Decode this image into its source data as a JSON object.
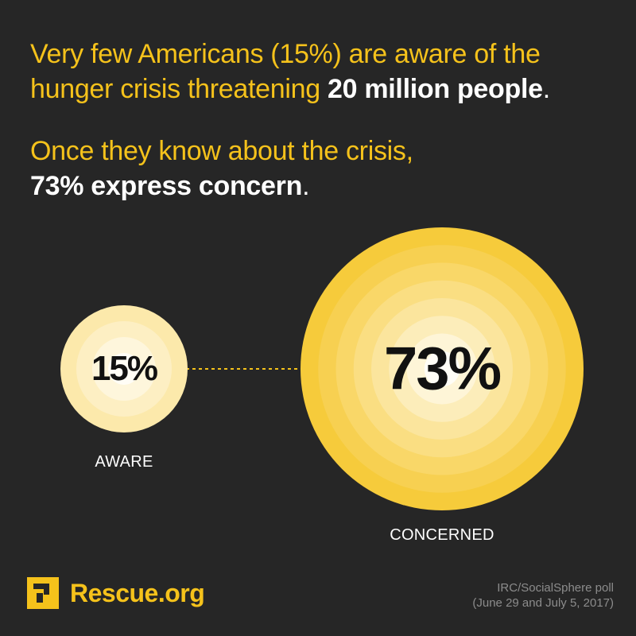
{
  "headline": {
    "line1_pre": "Very few Americans (15%) are aware of the hunger crisis threatening ",
    "line1_em": "20 million people",
    "line1_end": ".",
    "line2_pre": "Once they know about the crisis,",
    "line2_em": "73% express concern",
    "line2_end": "."
  },
  "chart_data": {
    "type": "bubble",
    "title": "",
    "items": [
      {
        "label": "AWARE",
        "value": 15,
        "value_label": "15%"
      },
      {
        "label": "CONCERNED",
        "value": 73,
        "value_label": "73%"
      }
    ],
    "connector": "dashed",
    "colors": {
      "outer": "#f5c21b",
      "center": "#ffffff"
    }
  },
  "footer": {
    "brand": "Rescue.org",
    "source_line1": "IRC/SocialSphere poll",
    "source_line2": "(June 29 and July 5, 2017)"
  },
  "colors": {
    "background": "#262626",
    "accent": "#f5c21b",
    "text": "#ffffff"
  },
  "icons": {
    "logo": "irc-logo-icon"
  }
}
